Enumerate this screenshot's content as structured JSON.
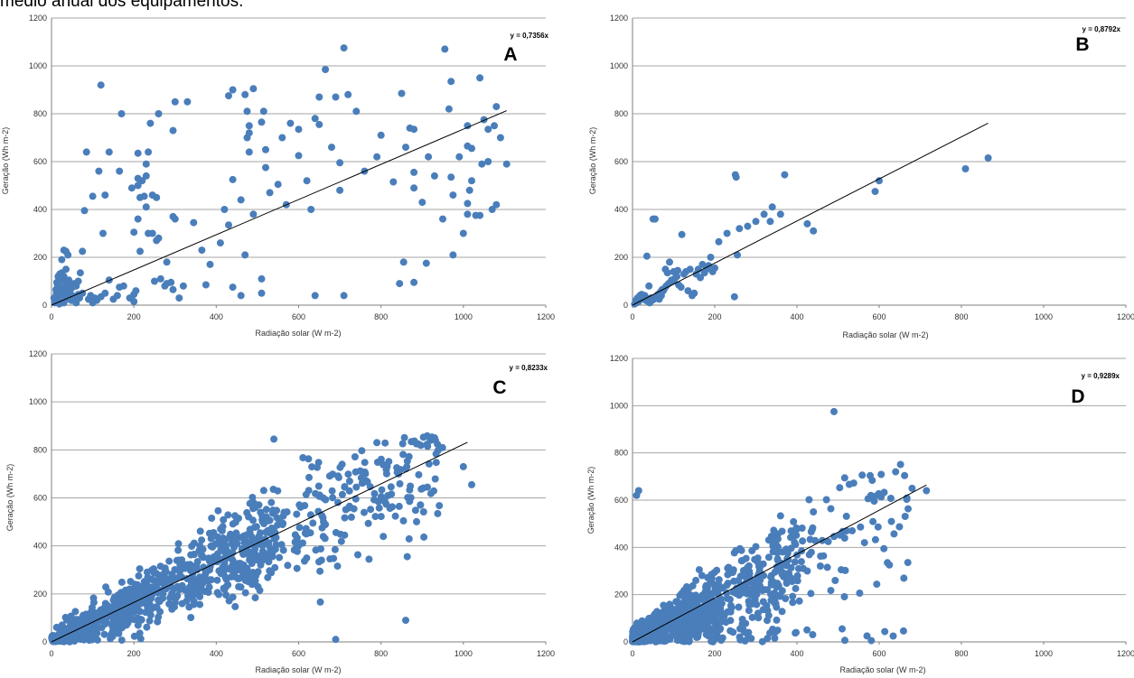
{
  "caption": "médio anual dos equipamentos.",
  "colors": {
    "points": "#4a7ebb",
    "grid": "#a6a6a6",
    "trendline": "#000000"
  },
  "chart_data": [
    {
      "type": "scatter",
      "panel_label": "A",
      "equation": "y = 0,7356x",
      "slope": 0.7356,
      "trendline_x_range": [
        0,
        1105
      ],
      "xlabel": "Radiação solar (W m-2)",
      "ylabel": "Geração (Wh m-2)",
      "xlim": [
        0,
        1200
      ],
      "ylim": [
        0,
        1200
      ],
      "xticks": [
        0,
        200,
        400,
        600,
        800,
        1000,
        1200
      ],
      "yticks": [
        0,
        200,
        400,
        600,
        800,
        1000,
        1200
      ],
      "grid": "horizontal",
      "point_count": 212,
      "points": [
        [
          120,
          920
        ],
        [
          170,
          800
        ],
        [
          260,
          800
        ],
        [
          300,
          850
        ],
        [
          330,
          850
        ],
        [
          295,
          730
        ],
        [
          440,
          900
        ],
        [
          430,
          875
        ],
        [
          470,
          880
        ],
        [
          490,
          905
        ],
        [
          475,
          810
        ],
        [
          480,
          750
        ],
        [
          480,
          720
        ],
        [
          475,
          700
        ],
        [
          515,
          810
        ],
        [
          510,
          765
        ],
        [
          600,
          735
        ],
        [
          650,
          870
        ],
        [
          665,
          985
        ],
        [
          690,
          870
        ],
        [
          640,
          780
        ],
        [
          650,
          755
        ],
        [
          710,
          1075
        ],
        [
          740,
          810
        ],
        [
          800,
          710
        ],
        [
          955,
          1070
        ],
        [
          965,
          820
        ],
        [
          970,
          935
        ],
        [
          1040,
          950
        ],
        [
          1080,
          830
        ],
        [
          1050,
          775
        ],
        [
          1010,
          750
        ],
        [
          1060,
          735
        ],
        [
          1075,
          750
        ],
        [
          1010,
          665
        ],
        [
          1020,
          655
        ],
        [
          870,
          740
        ],
        [
          880,
          735
        ],
        [
          850,
          885
        ],
        [
          700,
          595
        ],
        [
          830,
          515
        ],
        [
          880,
          555
        ],
        [
          880,
          490
        ],
        [
          915,
          620
        ],
        [
          970,
          535
        ],
        [
          975,
          460
        ],
        [
          1015,
          480
        ],
        [
          1010,
          425
        ],
        [
          1045,
          590
        ],
        [
          1080,
          420
        ],
        [
          1070,
          400
        ],
        [
          1010,
          380
        ],
        [
          1030,
          375
        ],
        [
          1040,
          375
        ],
        [
          1105,
          590
        ],
        [
          910,
          175
        ],
        [
          975,
          210
        ],
        [
          855,
          180
        ],
        [
          845,
          90
        ],
        [
          880,
          95
        ],
        [
          710,
          40
        ],
        [
          640,
          40
        ],
        [
          420,
          400
        ],
        [
          430,
          335
        ],
        [
          440,
          525
        ],
        [
          480,
          640
        ],
        [
          520,
          575
        ],
        [
          550,
          505
        ],
        [
          600,
          625
        ],
        [
          470,
          210
        ],
        [
          510,
          110
        ],
        [
          510,
          50
        ],
        [
          460,
          40
        ],
        [
          440,
          75
        ],
        [
          410,
          260
        ],
        [
          365,
          230
        ],
        [
          375,
          85
        ],
        [
          345,
          345
        ],
        [
          310,
          30
        ],
        [
          300,
          360
        ],
        [
          295,
          370
        ],
        [
          280,
          180
        ],
        [
          290,
          95
        ],
        [
          295,
          65
        ],
        [
          280,
          90
        ],
        [
          265,
          110
        ],
        [
          255,
          450
        ],
        [
          250,
          100
        ],
        [
          240,
          760
        ],
        [
          235,
          640
        ],
        [
          230,
          590
        ],
        [
          230,
          540
        ],
        [
          220,
          520
        ],
        [
          210,
          500
        ],
        [
          215,
          450
        ],
        [
          225,
          455
        ],
        [
          230,
          410
        ],
        [
          235,
          300
        ],
        [
          245,
          460
        ],
        [
          255,
          270
        ],
        [
          210,
          360
        ],
        [
          200,
          305
        ],
        [
          195,
          490
        ],
        [
          210,
          635
        ],
        [
          215,
          225
        ],
        [
          205,
          60
        ],
        [
          200,
          45
        ],
        [
          190,
          30
        ],
        [
          200,
          15
        ],
        [
          175,
          80
        ],
        [
          165,
          75
        ],
        [
          160,
          40
        ],
        [
          150,
          25
        ],
        [
          140,
          105
        ],
        [
          130,
          50
        ],
        [
          120,
          35
        ],
        [
          110,
          20
        ],
        [
          100,
          10
        ],
        [
          115,
          560
        ],
        [
          130,
          460
        ],
        [
          125,
          300
        ],
        [
          100,
          455
        ],
        [
          85,
          640
        ],
        [
          80,
          395
        ],
        [
          75,
          225
        ],
        [
          70,
          135
        ],
        [
          60,
          80
        ],
        [
          65,
          100
        ],
        [
          75,
          50
        ],
        [
          55,
          90
        ],
        [
          45,
          45
        ],
        [
          40,
          30
        ],
        [
          35,
          25
        ],
        [
          30,
          40
        ],
        [
          25,
          70
        ],
        [
          20,
          55
        ],
        [
          15,
          30
        ],
        [
          10,
          20
        ],
        [
          20,
          15
        ],
        [
          30,
          10
        ],
        [
          25,
          190
        ],
        [
          30,
          230
        ],
        [
          35,
          225
        ],
        [
          40,
          210
        ],
        [
          20,
          130
        ],
        [
          25,
          135
        ],
        [
          35,
          150
        ],
        [
          30,
          120
        ],
        [
          35,
          100
        ],
        [
          40,
          90
        ],
        [
          45,
          60
        ],
        [
          50,
          40
        ],
        [
          55,
          20
        ],
        [
          60,
          10
        ],
        [
          45,
          70
        ],
        [
          15,
          85
        ],
        [
          18,
          100
        ],
        [
          22,
          110
        ],
        [
          28,
          75
        ],
        [
          12,
          50
        ],
        [
          14,
          15
        ],
        [
          55,
          35
        ],
        [
          65,
          45
        ],
        [
          68,
          30
        ],
        [
          48,
          20
        ],
        [
          38,
          55
        ],
        [
          42,
          105
        ],
        [
          52,
          75
        ],
        [
          33,
          85
        ],
        [
          27,
          60
        ],
        [
          23,
          45
        ],
        [
          17,
          35
        ],
        [
          11,
          65
        ],
        [
          13,
          95
        ],
        [
          16,
          120
        ],
        [
          19,
          5
        ],
        [
          8,
          10
        ],
        [
          6,
          30
        ],
        [
          90,
          25
        ],
        [
          95,
          40
        ],
        [
          105,
          30
        ],
        [
          140,
          640
        ],
        [
          165,
          560
        ],
        [
          210,
          530
        ],
        [
          245,
          300
        ],
        [
          260,
          280
        ],
        [
          275,
          80
        ],
        [
          320,
          80
        ],
        [
          385,
          170
        ],
        [
          460,
          440
        ],
        [
          490,
          380
        ],
        [
          530,
          470
        ],
        [
          560,
          700
        ],
        [
          570,
          420
        ],
        [
          620,
          520
        ],
        [
          680,
          660
        ],
        [
          720,
          880
        ],
        [
          760,
          560
        ],
        [
          790,
          620
        ],
        [
          860,
          660
        ],
        [
          900,
          430
        ],
        [
          930,
          540
        ],
        [
          950,
          360
        ],
        [
          990,
          620
        ],
        [
          1000,
          300
        ],
        [
          1020,
          520
        ],
        [
          1060,
          600
        ],
        [
          1090,
          700
        ],
        [
          520,
          650
        ],
        [
          580,
          760
        ],
        [
          630,
          400
        ],
        [
          700,
          480
        ]
      ]
    },
    {
      "type": "scatter",
      "panel_label": "B",
      "equation": "y = 0,8792x",
      "slope": 0.8792,
      "trendline_x_range": [
        0,
        865
      ],
      "xlabel": "Radiação solar (W m-2)",
      "ylabel": "Geração (Wh m-2)",
      "xlim": [
        0,
        1200
      ],
      "ylim": [
        0,
        1200
      ],
      "xticks": [
        0,
        200,
        400,
        600,
        800,
        1000,
        1200
      ],
      "yticks": [
        0,
        200,
        400,
        600,
        800,
        1000,
        1200
      ],
      "grid": "horizontal",
      "point_count": 80,
      "points": [
        [
          865,
          615
        ],
        [
          810,
          570
        ],
        [
          600,
          520
        ],
        [
          590,
          475
        ],
        [
          370,
          545
        ],
        [
          340,
          410
        ],
        [
          335,
          350
        ],
        [
          300,
          350
        ],
        [
          425,
          340
        ],
        [
          440,
          310
        ],
        [
          250,
          545
        ],
        [
          252,
          535
        ],
        [
          255,
          210
        ],
        [
          248,
          35
        ],
        [
          210,
          265
        ],
        [
          180,
          150
        ],
        [
          190,
          200
        ],
        [
          175,
          135
        ],
        [
          200,
          155
        ],
        [
          160,
          150
        ],
        [
          150,
          50
        ],
        [
          145,
          40
        ],
        [
          120,
          295
        ],
        [
          110,
          145
        ],
        [
          100,
          140
        ],
        [
          95,
          105
        ],
        [
          90,
          180
        ],
        [
          85,
          135
        ],
        [
          80,
          150
        ],
        [
          75,
          60
        ],
        [
          70,
          40
        ],
        [
          65,
          25
        ],
        [
          55,
          360
        ],
        [
          50,
          360
        ],
        [
          45,
          30
        ],
        [
          40,
          80
        ],
        [
          35,
          205
        ],
        [
          30,
          40
        ],
        [
          25,
          30
        ],
        [
          20,
          25
        ],
        [
          15,
          15
        ],
        [
          10,
          10
        ],
        [
          5,
          5
        ],
        [
          8,
          20
        ],
        [
          12,
          30
        ],
        [
          18,
          40
        ],
        [
          22,
          45
        ],
        [
          28,
          35
        ],
        [
          32,
          20
        ],
        [
          38,
          15
        ],
        [
          42,
          10
        ],
        [
          48,
          20
        ],
        [
          52,
          25
        ],
        [
          58,
          35
        ],
        [
          62,
          45
        ],
        [
          68,
          55
        ],
        [
          72,
          65
        ],
        [
          78,
          70
        ],
        [
          82,
          80
        ],
        [
          88,
          90
        ],
        [
          92,
          95
        ],
        [
          98,
          100
        ],
        [
          102,
          110
        ],
        [
          108,
          120
        ],
        [
          112,
          85
        ],
        [
          118,
          75
        ],
        [
          125,
          130
        ],
        [
          130,
          140
        ],
        [
          135,
          60
        ],
        [
          140,
          150
        ],
        [
          155,
          130
        ],
        [
          165,
          115
        ],
        [
          170,
          170
        ],
        [
          185,
          165
        ],
        [
          195,
          140
        ],
        [
          230,
          300
        ],
        [
          260,
          320
        ],
        [
          280,
          330
        ],
        [
          320,
          380
        ],
        [
          360,
          380
        ]
      ]
    },
    {
      "type": "scatter",
      "panel_label": "C",
      "equation": "y = 0,8233x",
      "slope": 0.8233,
      "trendline_x_range": [
        0,
        1010
      ],
      "xlabel": "Radiação solar (W m-2)",
      "ylabel": "Geração (Wh m-2)",
      "xlim": [
        0,
        1200
      ],
      "ylim": [
        0,
        1200
      ],
      "xticks": [
        0,
        200,
        400,
        600,
        800,
        1000,
        1200
      ],
      "yticks": [
        0,
        200,
        400,
        600,
        800,
        1000,
        1200
      ],
      "grid": "horizontal",
      "outlier_points": [
        [
          690,
          10
        ],
        [
          860,
          90
        ],
        [
          1020,
          655
        ],
        [
          1000,
          730
        ],
        [
          930,
          850
        ],
        [
          540,
          845
        ]
      ],
      "point_cloud_approx": "approx. 1000 points; generation rises with radiation, density highest below 500 W m-2; upper envelope about 850 Wh m-2 at 600-900 W m-2"
    },
    {
      "type": "scatter",
      "panel_label": "D",
      "equation": "y = 0,9289x",
      "slope": 0.9289,
      "trendline_x_range": [
        0,
        715
      ],
      "xlabel": "Radiação solar (W m-2)",
      "ylabel": "Geração (Wh m-2)",
      "xlim": [
        0,
        1200
      ],
      "ylim": [
        0,
        1200
      ],
      "xticks": [
        0,
        200,
        400,
        600,
        800,
        1000,
        1200
      ],
      "yticks": [
        0,
        200,
        400,
        600,
        800,
        1000,
        1200
      ],
      "grid": "horizontal",
      "outlier_points": [
        [
          490,
          975
        ],
        [
          660,
          270
        ],
        [
          715,
          640
        ],
        [
          680,
          650
        ],
        [
          640,
          720
        ],
        [
          15,
          640
        ],
        [
          10,
          620
        ]
      ],
      "point_cloud_approx": "approx. 900 points; densest below 300 W m-2 near the origin; most values below 700 Wh m-2"
    }
  ]
}
